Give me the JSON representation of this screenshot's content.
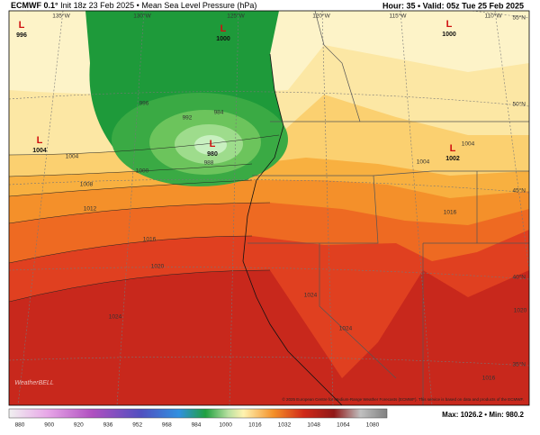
{
  "header": {
    "model": "ECMWF 0.1°",
    "title": "Init 18z 23 Feb 2025 • Mean Sea Level Pressure (hPa)",
    "valid": "Hour: 35 • Valid: 05z Tue 25 Feb 2025"
  },
  "lon_labels": [
    "135°W",
    "130°W",
    "125°W",
    "120°W",
    "115°W",
    "110°W"
  ],
  "lat_labels": [
    "55°N",
    "50°N",
    "45°N",
    "40°N",
    "35°N"
  ],
  "pressure_centers": [
    {
      "symbol": "L",
      "value": "996"
    },
    {
      "symbol": "L",
      "value": "1000"
    },
    {
      "symbol": "L",
      "value": "1000"
    },
    {
      "symbol": "L",
      "value": "1004"
    },
    {
      "symbol": "L",
      "value": "980"
    },
    {
      "symbol": "L",
      "value": "1002"
    }
  ],
  "contour_labels": [
    "996",
    "992",
    "984",
    "988",
    "1004",
    "1000",
    "1008",
    "1012",
    "1016",
    "1020",
    "1024",
    "1004",
    "1016",
    "1024",
    "1024",
    "1020",
    "1016",
    "1004"
  ],
  "logo": "WeatherBELL",
  "copyright": "© 2025 European Centre for Medium-Range Weather Forecasts (ECMWF). This service is based on data and products of the ECMWF.",
  "colorbar_ticks": [
    "880",
    "900",
    "920",
    "936",
    "952",
    "968",
    "984",
    "1000",
    "1016",
    "1032",
    "1048",
    "1064",
    "1080"
  ],
  "stats": "Max: 1026.2 • Min: 980.2"
}
